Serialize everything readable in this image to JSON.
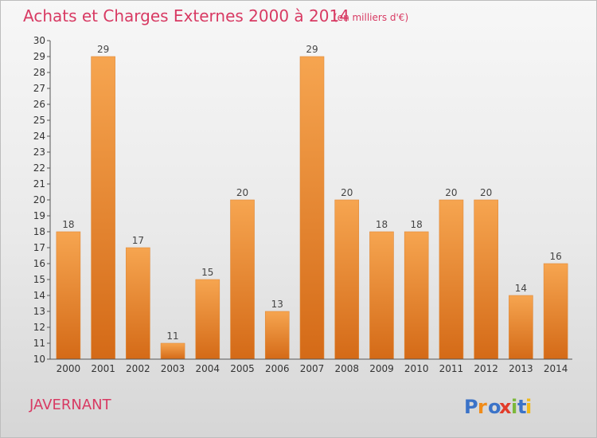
{
  "chart_data": {
    "type": "bar",
    "title": "Achats et Charges Externes 2000 à 2014",
    "subtitle": "(en milliers d'€)",
    "categories": [
      "2000",
      "2001",
      "2002",
      "2003",
      "2004",
      "2005",
      "2006",
      "2007",
      "2008",
      "2009",
      "2010",
      "2011",
      "2012",
      "2013",
      "2014"
    ],
    "values": [
      18,
      29,
      17,
      11,
      15,
      20,
      13,
      29,
      20,
      18,
      18,
      20,
      20,
      14,
      16
    ],
    "ylim": [
      10,
      30
    ],
    "yticks": [
      10,
      11,
      12,
      13,
      14,
      15,
      16,
      17,
      18,
      19,
      20,
      21,
      22,
      23,
      24,
      25,
      26,
      27,
      28,
      29,
      30
    ],
    "grid": false,
    "bar_color_top": "#f6a550",
    "bar_color_bottom": "#d46a17"
  },
  "commune": "JAVERNANT",
  "logo": {
    "text": "Proxiti",
    "colors": [
      "#3b73c8",
      "#f08c1a",
      "#3b73c8",
      "#e23c2a",
      "#7cb83a",
      "#3b73c8",
      "#f0b81a"
    ]
  },
  "colors": {
    "accent": "#d83a63"
  }
}
